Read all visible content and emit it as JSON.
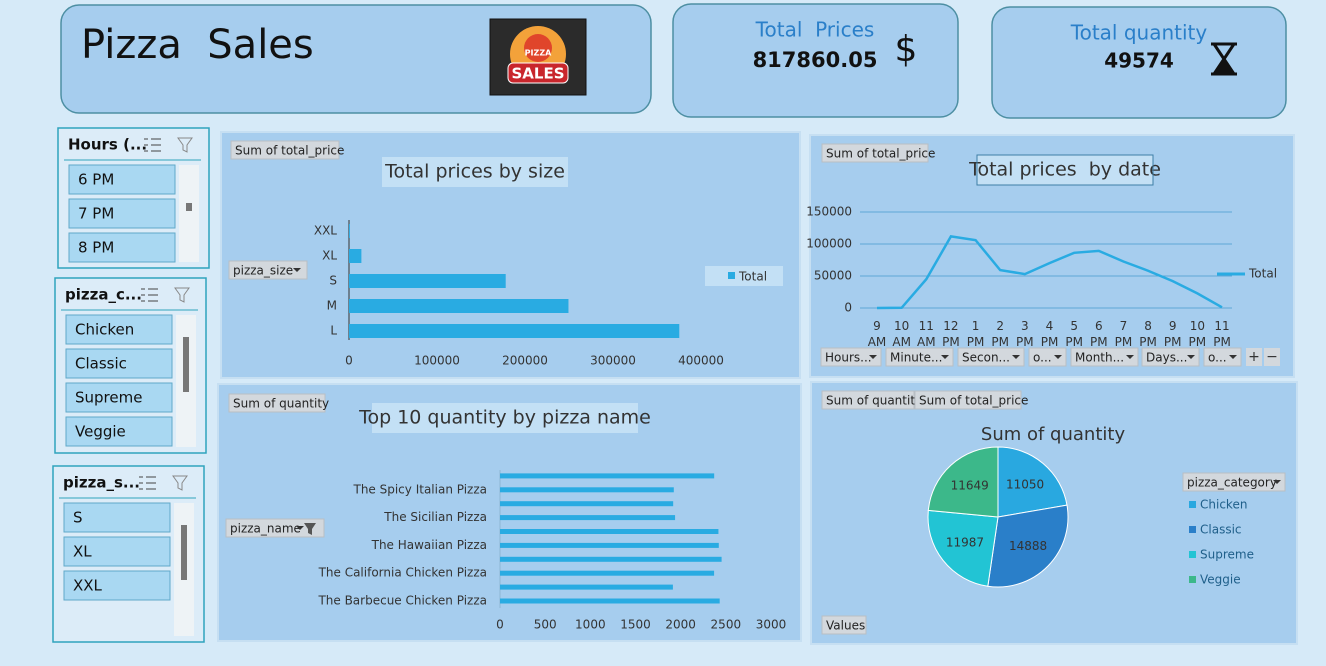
{
  "header": {
    "title": "Pizza  Sales",
    "logo": {
      "top": "PIZZA",
      "bottom": "SALES"
    }
  },
  "kpis": [
    {
      "label": "Total  Prices",
      "value": "817860.05",
      "icon": "$"
    },
    {
      "label": "Total quantity",
      "value": "49574"
    }
  ],
  "slicers": [
    {
      "title": "Hours (...",
      "items": [
        "6 PM",
        "7 PM",
        "8 PM"
      ]
    },
    {
      "title": "pizza_c...",
      "items": [
        "Chicken",
        "Classic",
        "Supreme",
        "Veggie"
      ]
    },
    {
      "title": "pizza_s...",
      "items": [
        "S",
        "XL",
        "XXL"
      ]
    }
  ],
  "chart_data": [
    {
      "type": "bar",
      "title": "Total prices by size",
      "field_button": "Sum of total_price",
      "axis_field": "pizza_size",
      "legend": "Total",
      "categories": [
        "L",
        "M",
        "S",
        "XL",
        "XXL"
      ],
      "values": [
        375318.7,
        249382.25,
        178076.5,
        14076,
        1006.6
      ],
      "color": "#29abe2",
      "xlim": [
        0,
        400000
      ],
      "xticks": [
        0,
        100000,
        200000,
        300000,
        400000
      ]
    },
    {
      "type": "line",
      "title": "Total prices  by date",
      "field_button": "Sum of total_price",
      "legend": "Total",
      "color": "#29abe2",
      "grid": true,
      "x": [
        "9 AM",
        "10 AM",
        "11 AM",
        "12 PM",
        "1 PM",
        "2 PM",
        "3 PM",
        "4 PM",
        "5 PM",
        "6 PM",
        "7 PM",
        "8 PM",
        "9 PM",
        "10 PM",
        "11 PM"
      ],
      "values": [
        83,
        303.65,
        44935.8,
        111877.9,
        106065.7,
        59201.4,
        52992.3,
        70055.4,
        86237.45,
        89296.85,
        72628.9,
        58215.4,
        42029.8,
        22815.15,
        1121.35
      ],
      "ylim": [
        0,
        150000
      ],
      "yticks": [
        0,
        50000,
        100000,
        150000
      ],
      "field_buttons": [
        "Hours...",
        "Minute...",
        "Secon...",
        "o...",
        "Month...",
        "Days...",
        "o..."
      ],
      "zoom_buttons": [
        "+",
        "−"
      ]
    },
    {
      "type": "bar",
      "title": "Top 10 quantity by pizza name",
      "field_button": "Sum of quantity",
      "axis_field": "pizza_name",
      "color": "#29abe2",
      "categories": [
        "The Barbecue Chicken Pizza",
        null,
        "The California Chicken Pizza",
        null,
        "The Hawaiian Pizza",
        null,
        "The Sicilian Pizza",
        null,
        "The Spicy Italian Pizza",
        null
      ],
      "values": [
        2432,
        1914,
        2370,
        2453,
        2422,
        2418,
        1938,
        1917,
        1924,
        2371
      ],
      "xlim": [
        0,
        3000
      ],
      "xticks": [
        0,
        500,
        1000,
        1500,
        2000,
        2500,
        3000
      ]
    },
    {
      "type": "pie",
      "title": "Sum of quantity",
      "field_buttons": [
        "Sum of quantity",
        "Sum of total_price"
      ],
      "values_button": "Values",
      "legend_title": "pizza_category",
      "categories": [
        "Chicken",
        "Classic",
        "Supreme",
        "Veggie"
      ],
      "values": [
        11050,
        14888,
        11987,
        11649
      ],
      "colors": [
        "#29a8e0",
        "#2a7fc9",
        "#22c4d4",
        "#3cb88a"
      ]
    }
  ]
}
